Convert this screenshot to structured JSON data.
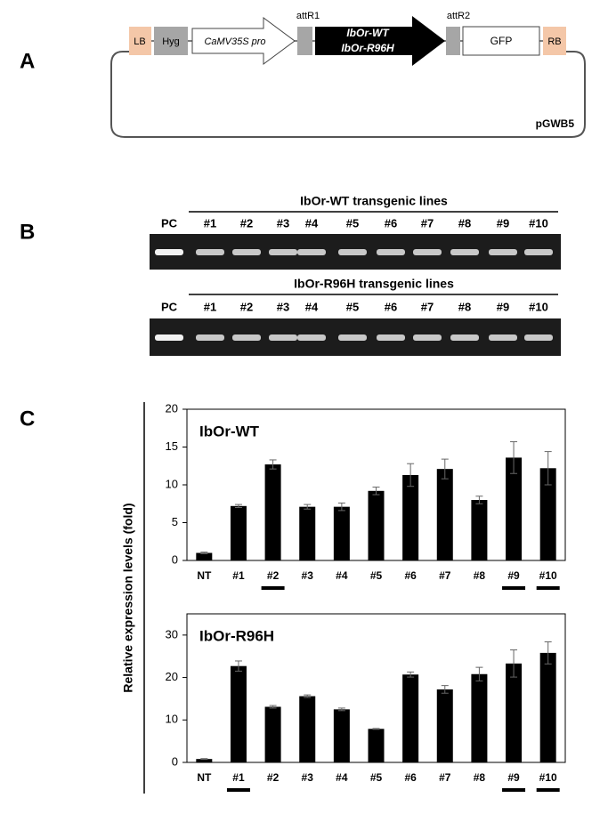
{
  "panels": {
    "a": "A",
    "b": "B",
    "c": "C"
  },
  "construct": {
    "lb": "LB",
    "hyg": "Hyg",
    "promoter": "CaMV35S pro",
    "attr1": "attR1",
    "gene_1": "IbOr-WT",
    "gene_2": "IbOr-R96H",
    "attr2": "attR2",
    "gfp": "GFP",
    "rb": "RB",
    "vector": "pGWB5"
  },
  "gels": [
    {
      "title": "IbOr-WT transgenic lines",
      "lanes": [
        "PC",
        "#1",
        "#2",
        "#3",
        "#4",
        "#5",
        "#6",
        "#7",
        "#8",
        "#9",
        "#10"
      ]
    },
    {
      "title": "IbOr-R96H transgenic lines",
      "lanes": [
        "PC",
        "#1",
        "#2",
        "#3",
        "#4",
        "#5",
        "#6",
        "#7",
        "#8",
        "#9",
        "#10"
      ]
    }
  ],
  "chart_data": [
    {
      "type": "bar",
      "title": "IbOr-WT",
      "ylabel": "Relative expression levels (fold)",
      "categories": [
        "NT",
        "#1",
        "#2",
        "#3",
        "#4",
        "#5",
        "#6",
        "#7",
        "#8",
        "#9",
        "#10"
      ],
      "values": [
        1.0,
        7.2,
        12.7,
        7.1,
        7.1,
        9.2,
        11.3,
        12.1,
        8.0,
        13.6,
        12.2
      ],
      "errors": [
        0.1,
        0.2,
        0.6,
        0.3,
        0.5,
        0.5,
        1.5,
        1.3,
        0.5,
        2.1,
        2.2
      ],
      "color": "#000000",
      "underlined": [
        2,
        9,
        10
      ],
      "ylim": [
        0,
        20
      ],
      "yticks": [
        0,
        5,
        10,
        15,
        20
      ]
    },
    {
      "type": "bar",
      "title": "IbOr-R96H",
      "categories": [
        "NT",
        "#1",
        "#2",
        "#3",
        "#4",
        "#5",
        "#6",
        "#7",
        "#8",
        "#9",
        "#10"
      ],
      "values": [
        0.8,
        22.7,
        13.1,
        15.6,
        12.5,
        7.9,
        20.7,
        17.2,
        20.8,
        23.3,
        25.8
      ],
      "errors": [
        0.1,
        1.2,
        0.3,
        0.3,
        0.3,
        0.1,
        0.6,
        0.9,
        1.6,
        3.2,
        2.6
      ],
      "color": "#000000",
      "underlined": [
        1,
        9,
        10
      ],
      "ylim": [
        0,
        35
      ],
      "yticks": [
        0,
        10,
        20,
        30
      ]
    }
  ]
}
